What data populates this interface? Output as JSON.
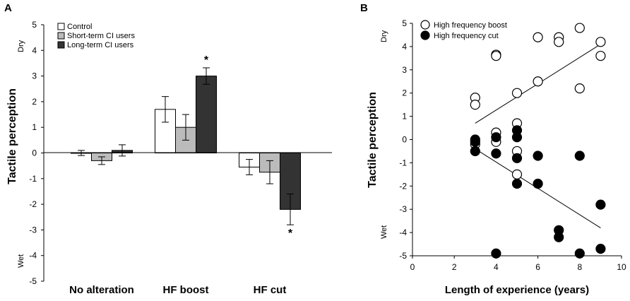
{
  "chart_data": [
    {
      "panel": "A",
      "type": "bar",
      "ylabel": "Tactile perception",
      "ylim": [
        -5,
        5
      ],
      "yticks": [
        "5",
        "4",
        "3",
        "2",
        "1",
        "0",
        "-1",
        "-2",
        "-3",
        "-4",
        "-5"
      ],
      "top_annotation": "Dry",
      "bottom_annotation": "Wet",
      "categories": [
        "No alteration",
        "HF boost",
        "HF cut"
      ],
      "series": [
        {
          "name": "Control",
          "color": "#ffffff",
          "values": [
            0.0,
            1.7,
            -0.55
          ],
          "errors": [
            0.1,
            0.5,
            0.3
          ]
        },
        {
          "name": "Short-term CI users",
          "color": "#bbbbbb",
          "values": [
            -0.3,
            1.0,
            -0.75
          ],
          "errors": [
            0.15,
            0.5,
            0.45
          ]
        },
        {
          "name": "Long-term CI users",
          "color": "#333333",
          "values": [
            0.1,
            3.0,
            -2.2
          ],
          "errors": [
            0.22,
            0.32,
            0.6
          ]
        }
      ],
      "significance": [
        {
          "category": "HF boost",
          "series": "Long-term CI users",
          "label": "*"
        },
        {
          "category": "HF cut",
          "series": "Long-term CI users",
          "label": "*"
        }
      ]
    },
    {
      "panel": "B",
      "type": "scatter",
      "xlabel": "Length of experience (years)",
      "ylabel": "Tactile perception",
      "xlim": [
        0,
        10
      ],
      "ylim": [
        -5,
        5
      ],
      "xticks": [
        "0",
        "2",
        "4",
        "6",
        "8",
        "10"
      ],
      "yticks": [
        "5",
        "4",
        "3",
        "2",
        "1",
        "0",
        "-1",
        "-2",
        "-3",
        "-4",
        "-5"
      ],
      "top_annotation": "Dry",
      "bottom_annotation": "Wet",
      "series": [
        {
          "name": "High frequency boost",
          "marker": "open-circle",
          "points": [
            [
              3,
              1.8
            ],
            [
              3,
              1.5
            ],
            [
              3,
              -0.2
            ],
            [
              4,
              3.65
            ],
            [
              4,
              3.6
            ],
            [
              4,
              0.3
            ],
            [
              4,
              -0.1
            ],
            [
              5,
              2.0
            ],
            [
              5,
              0.7
            ],
            [
              5,
              -0.5
            ],
            [
              5,
              -1.5
            ],
            [
              6,
              4.4
            ],
            [
              6,
              2.5
            ],
            [
              7,
              4.4
            ],
            [
              7,
              4.2
            ],
            [
              8,
              4.8
            ],
            [
              8,
              2.2
            ],
            [
              9,
              4.2
            ],
            [
              9,
              3.6
            ]
          ],
          "trend": [
            [
              3,
              0.7
            ],
            [
              9,
              4.1
            ]
          ]
        },
        {
          "name": "High frequency cut",
          "marker": "filled-circle",
          "points": [
            [
              3,
              0.0
            ],
            [
              3,
              -0.1
            ],
            [
              3,
              -0.5
            ],
            [
              4,
              0.1
            ],
            [
              4,
              -0.6
            ],
            [
              4,
              -4.9
            ],
            [
              5,
              0.4
            ],
            [
              5,
              0.1
            ],
            [
              5,
              -0.8
            ],
            [
              5,
              -1.9
            ],
            [
              6,
              -0.7
            ],
            [
              6,
              -1.9
            ],
            [
              7,
              -3.9
            ],
            [
              7,
              -4.2
            ],
            [
              8,
              -0.7
            ],
            [
              8,
              -4.9
            ],
            [
              9,
              -2.8
            ],
            [
              9,
              -4.7
            ]
          ],
          "trend": [
            [
              3,
              -0.4
            ],
            [
              9,
              -3.8
            ]
          ]
        }
      ]
    }
  ]
}
